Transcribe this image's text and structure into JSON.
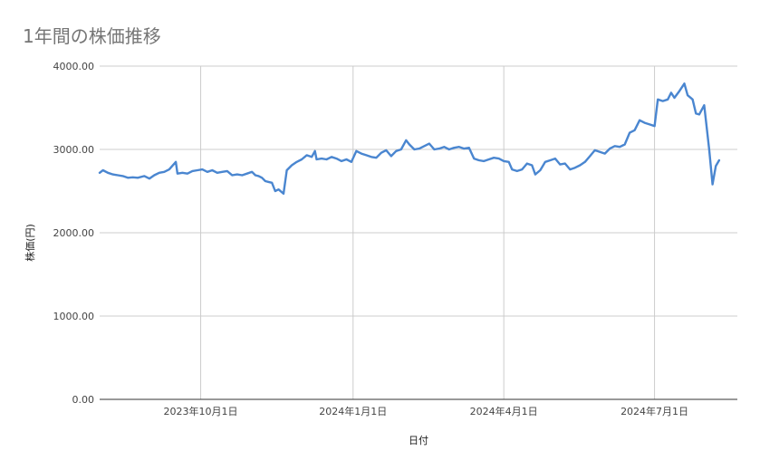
{
  "chart_data": {
    "type": "line",
    "title": "1年間の株価推移",
    "xlabel": "日付",
    "ylabel": "株価(円)",
    "ylim": [
      0,
      4000
    ],
    "y_ticks": [
      "0.00",
      "1000.00",
      "2000.00",
      "3000.00",
      "4000.00"
    ],
    "x_ticks": [
      {
        "date": "2023-10-01",
        "label": "2023年10月1日"
      },
      {
        "date": "2024-01-01",
        "label": "2024年1月1日"
      },
      {
        "date": "2024-04-01",
        "label": "2024年4月1日"
      },
      {
        "date": "2024-07-01",
        "label": "2024年7月1日"
      }
    ],
    "xlim": [
      "2023-08-01",
      "2024-08-20"
    ],
    "grid": true,
    "line_color": "#4a86d0",
    "series": [
      {
        "points": [
          [
            "2023-08-01",
            2720
          ],
          [
            "2023-08-03",
            2750
          ],
          [
            "2023-08-06",
            2720
          ],
          [
            "2023-08-09",
            2700
          ],
          [
            "2023-08-12",
            2690
          ],
          [
            "2023-08-15",
            2680
          ],
          [
            "2023-08-18",
            2660
          ],
          [
            "2023-08-21",
            2665
          ],
          [
            "2023-08-24",
            2660
          ],
          [
            "2023-08-28",
            2680
          ],
          [
            "2023-08-31",
            2650
          ],
          [
            "2023-09-03",
            2690
          ],
          [
            "2023-09-06",
            2720
          ],
          [
            "2023-09-09",
            2730
          ],
          [
            "2023-09-12",
            2760
          ],
          [
            "2023-09-16",
            2850
          ],
          [
            "2023-09-17",
            2710
          ],
          [
            "2023-09-20",
            2720
          ],
          [
            "2023-09-23",
            2710
          ],
          [
            "2023-09-26",
            2740
          ],
          [
            "2023-09-29",
            2750
          ],
          [
            "2023-10-02",
            2760
          ],
          [
            "2023-10-05",
            2730
          ],
          [
            "2023-10-08",
            2750
          ],
          [
            "2023-10-11",
            2720
          ],
          [
            "2023-10-14",
            2730
          ],
          [
            "2023-10-17",
            2740
          ],
          [
            "2023-10-20",
            2690
          ],
          [
            "2023-10-23",
            2700
          ],
          [
            "2023-10-26",
            2690
          ],
          [
            "2023-10-29",
            2710
          ],
          [
            "2023-11-01",
            2730
          ],
          [
            "2023-11-03",
            2690
          ],
          [
            "2023-11-05",
            2680
          ],
          [
            "2023-11-07",
            2660
          ],
          [
            "2023-11-09",
            2620
          ],
          [
            "2023-11-11",
            2610
          ],
          [
            "2023-11-13",
            2600
          ],
          [
            "2023-11-15",
            2500
          ],
          [
            "2023-11-17",
            2520
          ],
          [
            "2023-11-20",
            2470
          ],
          [
            "2023-11-22",
            2750
          ],
          [
            "2023-11-25",
            2810
          ],
          [
            "2023-11-28",
            2850
          ],
          [
            "2023-12-01",
            2880
          ],
          [
            "2023-12-04",
            2930
          ],
          [
            "2023-12-07",
            2910
          ],
          [
            "2023-12-09",
            2980
          ],
          [
            "2023-12-10",
            2880
          ],
          [
            "2023-12-13",
            2890
          ],
          [
            "2023-12-16",
            2880
          ],
          [
            "2023-12-19",
            2910
          ],
          [
            "2023-12-22",
            2890
          ],
          [
            "2023-12-25",
            2860
          ],
          [
            "2023-12-28",
            2880
          ],
          [
            "2023-12-31",
            2850
          ],
          [
            "2024-01-03",
            2980
          ],
          [
            "2024-01-06",
            2950
          ],
          [
            "2024-01-09",
            2930
          ],
          [
            "2024-01-12",
            2910
          ],
          [
            "2024-01-15",
            2900
          ],
          [
            "2024-01-18",
            2960
          ],
          [
            "2024-01-21",
            2990
          ],
          [
            "2024-01-24",
            2920
          ],
          [
            "2024-01-27",
            2980
          ],
          [
            "2024-01-30",
            3000
          ],
          [
            "2024-02-02",
            3110
          ],
          [
            "2024-02-04",
            3060
          ],
          [
            "2024-02-07",
            3000
          ],
          [
            "2024-02-10",
            3010
          ],
          [
            "2024-02-13",
            3040
          ],
          [
            "2024-02-16",
            3070
          ],
          [
            "2024-02-19",
            3000
          ],
          [
            "2024-02-22",
            3010
          ],
          [
            "2024-02-25",
            3030
          ],
          [
            "2024-02-28",
            3000
          ],
          [
            "2024-03-02",
            3020
          ],
          [
            "2024-03-05",
            3030
          ],
          [
            "2024-03-08",
            3010
          ],
          [
            "2024-03-11",
            3020
          ],
          [
            "2024-03-14",
            2890
          ],
          [
            "2024-03-17",
            2870
          ],
          [
            "2024-03-20",
            2860
          ],
          [
            "2024-03-23",
            2880
          ],
          [
            "2024-03-26",
            2900
          ],
          [
            "2024-03-29",
            2890
          ],
          [
            "2024-04-01",
            2860
          ],
          [
            "2024-04-04",
            2850
          ],
          [
            "2024-04-06",
            2760
          ],
          [
            "2024-04-09",
            2740
          ],
          [
            "2024-04-12",
            2760
          ],
          [
            "2024-04-15",
            2830
          ],
          [
            "2024-04-18",
            2810
          ],
          [
            "2024-04-20",
            2700
          ],
          [
            "2024-04-23",
            2750
          ],
          [
            "2024-04-26",
            2850
          ],
          [
            "2024-04-29",
            2870
          ],
          [
            "2024-05-02",
            2890
          ],
          [
            "2024-05-05",
            2820
          ],
          [
            "2024-05-08",
            2830
          ],
          [
            "2024-05-11",
            2760
          ],
          [
            "2024-05-14",
            2780
          ],
          [
            "2024-05-17",
            2810
          ],
          [
            "2024-05-20",
            2850
          ],
          [
            "2024-05-23",
            2920
          ],
          [
            "2024-05-26",
            2990
          ],
          [
            "2024-05-29",
            2970
          ],
          [
            "2024-06-01",
            2950
          ],
          [
            "2024-06-04",
            3010
          ],
          [
            "2024-06-07",
            3040
          ],
          [
            "2024-06-10",
            3030
          ],
          [
            "2024-06-13",
            3060
          ],
          [
            "2024-06-16",
            3200
          ],
          [
            "2024-06-19",
            3230
          ],
          [
            "2024-06-22",
            3350
          ],
          [
            "2024-06-25",
            3320
          ],
          [
            "2024-06-28",
            3300
          ],
          [
            "2024-07-01",
            3280
          ],
          [
            "2024-07-03",
            3600
          ],
          [
            "2024-07-06",
            3580
          ],
          [
            "2024-07-09",
            3600
          ],
          [
            "2024-07-11",
            3680
          ],
          [
            "2024-07-13",
            3620
          ],
          [
            "2024-07-16",
            3700
          ],
          [
            "2024-07-19",
            3790
          ],
          [
            "2024-07-21",
            3650
          ],
          [
            "2024-07-24",
            3600
          ],
          [
            "2024-07-26",
            3430
          ],
          [
            "2024-07-28",
            3420
          ],
          [
            "2024-07-31",
            3530
          ],
          [
            "2024-08-03",
            3000
          ],
          [
            "2024-08-05",
            2580
          ],
          [
            "2024-08-07",
            2800
          ],
          [
            "2024-08-09",
            2870
          ]
        ]
      }
    ]
  }
}
